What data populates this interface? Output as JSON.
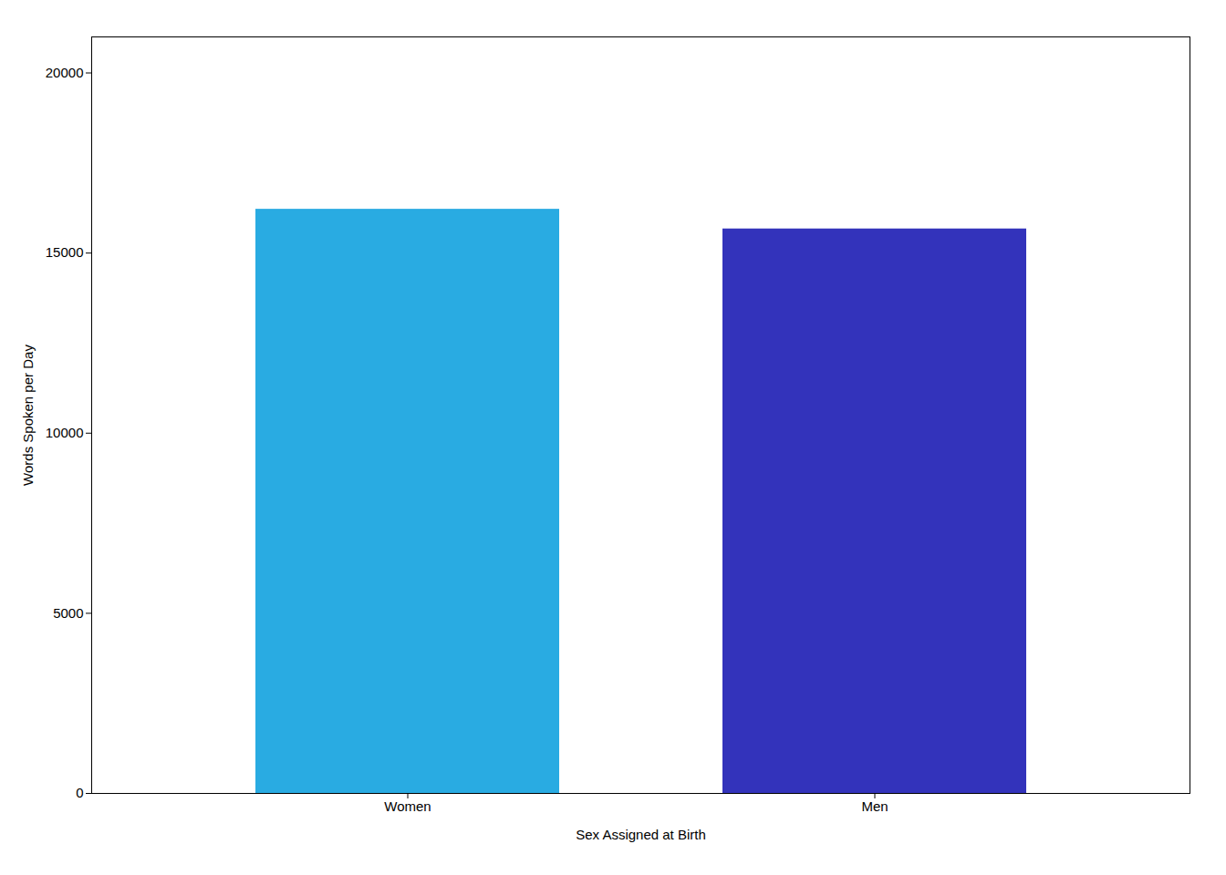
{
  "chart_data": {
    "type": "bar",
    "categories": [
      "Women",
      "Men"
    ],
    "values": [
      16215,
      15669
    ],
    "colors": [
      "#29ABE2",
      "#3333BB"
    ],
    "xlabel": "Sex Assigned at Birth",
    "ylabel": "Words Spoken per Day",
    "ylim": [
      0,
      21000
    ],
    "yticks": [
      0,
      5000,
      10000,
      15000,
      20000
    ],
    "grid": false
  }
}
